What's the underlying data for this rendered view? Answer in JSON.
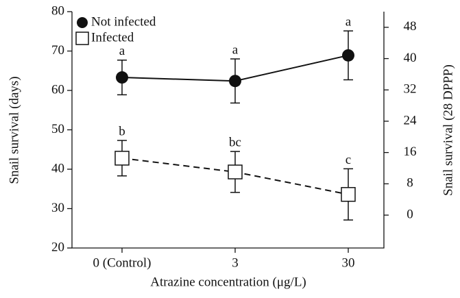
{
  "chart_data": {
    "type": "line",
    "xlabel": "Atrazine concentration (μg/L)",
    "ylabel": "Snail survival (days)",
    "y2label": "Snail survival (28 DPPP)",
    "categories": [
      "0 (Control)",
      "3",
      "30"
    ],
    "series": [
      {
        "name": "Not infected",
        "color": "#111111",
        "marker": "circle",
        "dash": false,
        "values": [
          63.3,
          62.4,
          68.9
        ],
        "errors": [
          4.4,
          5.6,
          6.2
        ],
        "letters": [
          "a",
          "a",
          "a"
        ]
      },
      {
        "name": "Infected",
        "color": "#111111",
        "marker": "square",
        "dash": true,
        "values": [
          42.8,
          39.3,
          33.6
        ],
        "errors": [
          4.5,
          5.2,
          6.5
        ],
        "letters": [
          "b",
          "bc",
          "c"
        ]
      }
    ],
    "ylim": [
      20,
      80
    ],
    "yticks": [
      20,
      30,
      40,
      50,
      60,
      70,
      80
    ],
    "y2lim": [
      -8.4,
      52
    ],
    "y2ticks": [
      0,
      8,
      16,
      24,
      32,
      40,
      48
    ],
    "legend": "upper left",
    "grid": false
  }
}
